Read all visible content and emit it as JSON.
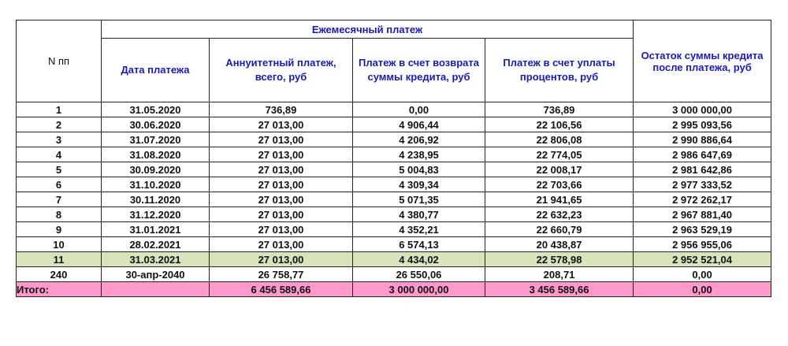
{
  "header": {
    "n": "N пп",
    "group": "Ежемесячный платеж",
    "date": "Дата платежа",
    "annuity": "Аннуитетный платеж, всего, руб",
    "principal": "Платеж в счет возврата суммы кредита, руб",
    "interest": "Платеж в счет уплаты процентов, руб",
    "balance": "Остаток суммы кредита после платежа, руб"
  },
  "rows": [
    [
      "1",
      "31.05.2020",
      "736,89",
      "0,00",
      "736,89",
      "3 000 000,00"
    ],
    [
      "2",
      "30.06.2020",
      "27 013,00",
      "4 906,44",
      "22 106,56",
      "2 995 093,56"
    ],
    [
      "3",
      "31.07.2020",
      "27 013,00",
      "4 206,92",
      "22 806,08",
      "2 990 886,64"
    ],
    [
      "4",
      "31.08.2020",
      "27 013,00",
      "4 238,95",
      "22 774,05",
      "2 986 647,69"
    ],
    [
      "5",
      "30.09.2020",
      "27 013,00",
      "5 004,83",
      "22 008,17",
      "2 981 642,86"
    ],
    [
      "6",
      "31.10.2020",
      "27 013,00",
      "4 309,34",
      "22 703,66",
      "2 977 333,52"
    ],
    [
      "7",
      "30.11.2020",
      "27 013,00",
      "5 071,35",
      "21 941,65",
      "2 972 262,17"
    ],
    [
      "8",
      "31.12.2020",
      "27 013,00",
      "4 380,77",
      "22 632,23",
      "2 967 881,40"
    ],
    [
      "9",
      "31.01.2021",
      "27 013,00",
      "4 352,21",
      "22 660,79",
      "2 963 529,19"
    ],
    [
      "10",
      "28.02.2021",
      "27 013,00",
      "6 574,13",
      "20 438,87",
      "2 956 955,06"
    ],
    [
      "11",
      "31.03.2021",
      "27 013,00",
      "4 434,02",
      "22 578,98",
      "2 952 521,04"
    ],
    [
      "240",
      "30-апр-2040",
      "26 758,77",
      "26 550,06",
      "208,71",
      "0,00"
    ]
  ],
  "highlight_row": 11,
  "total": [
    "Итого:",
    "",
    "6 456 589,66",
    "3 000 000,00",
    "3 456 589,66",
    "0,00"
  ],
  "colors": {
    "header_text": "#1a1ab8",
    "highlight": "#d8e4bc",
    "total": "#ff99cc"
  }
}
